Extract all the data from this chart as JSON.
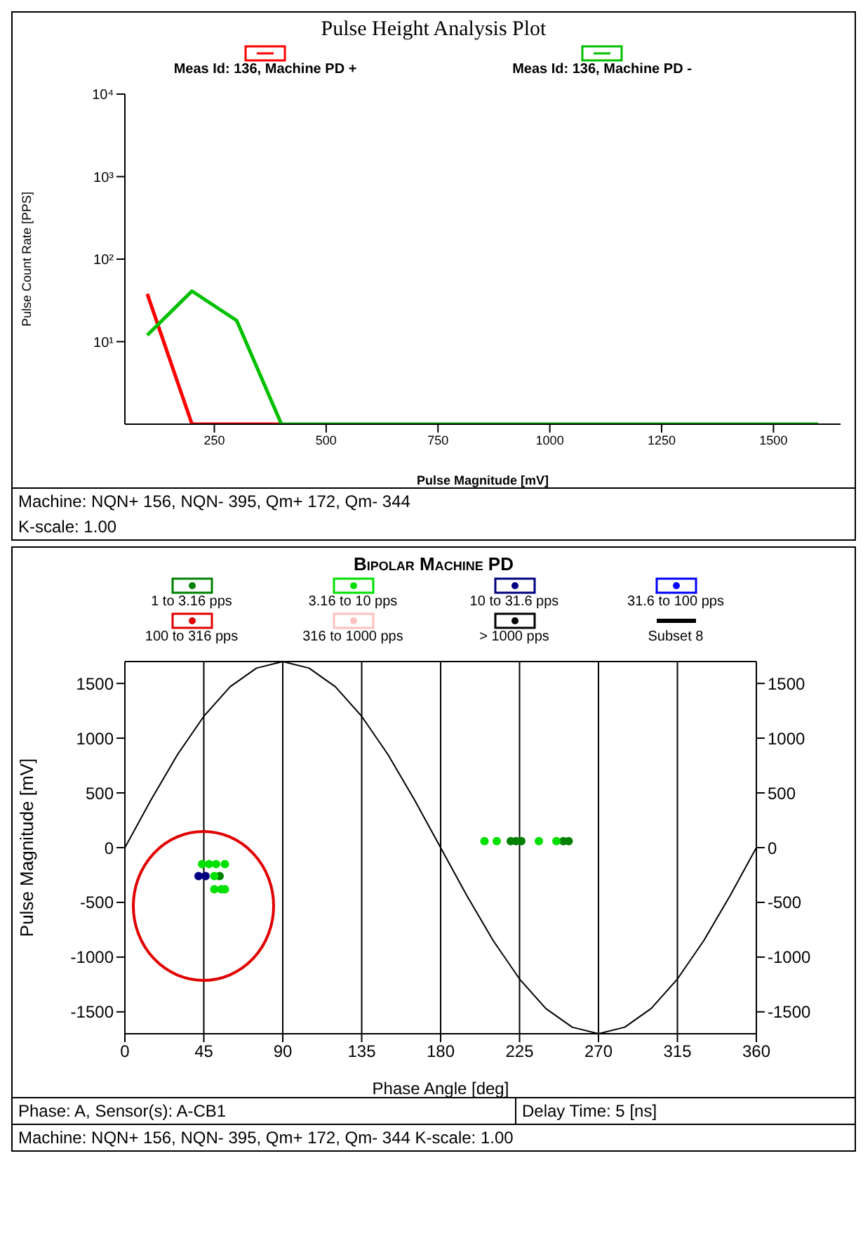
{
  "chart_data": [
    {
      "type": "line",
      "title": "Pulse Height Analysis Plot",
      "xlabel": "Pulse Magnitude [mV]",
      "ylabel": "Pulse Count Rate [PPS]",
      "log": "y",
      "legend": "top",
      "grid": false,
      "x": [
        100,
        200,
        300,
        400,
        500,
        600,
        700,
        800,
        900,
        1000,
        1100,
        1200,
        1300,
        1400,
        1500,
        1600
      ],
      "series": [
        {
          "name": "Meas Id: 136, Machine PD +",
          "color": "#ff0000",
          "x": [
            100,
            200,
            300,
            400
          ],
          "values": [
            38,
            1,
            1,
            1
          ]
        },
        {
          "name": "Meas Id: 136, Machine PD -",
          "color": "#00c000",
          "values": [
            12,
            41,
            18,
            1,
            1,
            1,
            1,
            1,
            1,
            1,
            1,
            1,
            1,
            1,
            1,
            1
          ]
        }
      ],
      "xlim": [
        50,
        1650
      ],
      "xticks": [
        250,
        500,
        750,
        1000,
        1250,
        1500
      ],
      "ylim": [
        1,
        10000
      ],
      "yticks": [
        {
          "value": 10,
          "label": "10¹"
        },
        {
          "value": 100,
          "label": "10²"
        },
        {
          "value": 1000,
          "label": "10³"
        },
        {
          "value": 10000,
          "label": "10⁴"
        }
      ],
      "annotations": [
        "Machine:   NQN+ 156, NQN- 395, Qm+ 172, Qm- 344",
        "K-scale: 1.00"
      ]
    },
    {
      "type": "scatter",
      "title": "Bipolar Machine PD",
      "xlabel": "Phase Angle [deg]",
      "ylabel": "Pulse Magnitude [mV]",
      "legend": "top",
      "grid": true,
      "marker": "circle",
      "series": [
        {
          "name": "1 to 3.16 pps",
          "color": "#008000",
          "x": [
            54,
            220,
            223,
            226,
            250,
            253
          ],
          "values": [
            -260,
            60,
            60,
            60,
            60,
            60
          ]
        },
        {
          "name": "3.16 to 10 pps",
          "color": "#00e000",
          "x": [
            44,
            48,
            52,
            57,
            51,
            51,
            55,
            57,
            205,
            212,
            236,
            246
          ],
          "values": [
            -150,
            -150,
            -150,
            -150,
            -260,
            -380,
            -380,
            -380,
            60,
            60,
            60,
            60
          ]
        },
        {
          "name": "10 to 31.6 pps",
          "color": "#000080",
          "x": [
            42,
            46
          ],
          "values": [
            -260,
            -260
          ]
        },
        {
          "name": "31.6 to 100 pps",
          "color": "#0000ff"
        },
        {
          "name": "100 to 316 pps",
          "color": "#e00000"
        },
        {
          "name": "316 to 1000 pps",
          "color": "#ffc0c0"
        },
        {
          "name": "> 1000 pps",
          "color": "#000000"
        },
        {
          "name": "Subset 8",
          "type": "line",
          "marker": "none",
          "color": "#000000",
          "x": [
            0,
            15,
            30,
            45,
            60,
            75,
            90,
            105,
            120,
            135,
            150,
            165,
            180,
            195,
            210,
            225,
            240,
            255,
            270,
            285,
            300,
            315,
            330,
            345,
            360
          ],
          "values": [
            0,
            440,
            850,
            1200,
            1470,
            1640,
            1700,
            1640,
            1470,
            1200,
            850,
            440,
            0,
            -440,
            -850,
            -1200,
            -1470,
            -1640,
            -1700,
            -1640,
            -1470,
            -1200,
            -850,
            -440,
            0
          ]
        }
      ],
      "xlim": [
        0,
        360
      ],
      "xticks": [
        0,
        45,
        90,
        135,
        180,
        225,
        270,
        315,
        360
      ],
      "ylim": [
        -1700,
        1700
      ],
      "yticks": [
        -1500,
        -1000,
        -500,
        0,
        500,
        1000,
        1500
      ],
      "y2lim": [
        -1700,
        1700
      ],
      "y2ticks": [
        -1500,
        -1000,
        -500,
        0,
        500,
        1000,
        1500
      ],
      "annotations": [
        "Phase: A,  Sensor(s): A-CB1",
        "Delay Time: 5 [ns]",
        "Machine:  NQN+ 156, NQN- 395, Qm+ 172, Qm- 344  K-scale: 1.00"
      ]
    }
  ]
}
